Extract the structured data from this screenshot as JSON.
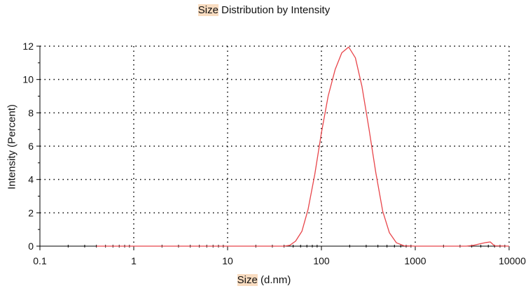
{
  "chart_data": {
    "type": "line",
    "title": {
      "highlight": "Size",
      "rest": " Distribution by Intensity"
    },
    "xlabel": {
      "highlight": "Size",
      "rest": " (d.nm)"
    },
    "ylabel": "Intensity (Percent)",
    "x_scale": "log",
    "xlim": [
      0.1,
      10000
    ],
    "ylim": [
      0,
      12
    ],
    "x_ticks": [
      "0.1",
      "1",
      "10",
      "100",
      "1000",
      "10000"
    ],
    "y_ticks": [
      "0",
      "2",
      "4",
      "6",
      "8",
      "10",
      "12"
    ],
    "grid": true,
    "series": [
      {
        "color": "#e8454a",
        "x": [
          0.4,
          10,
          40,
          46,
          53,
          62,
          72,
          85,
          100,
          118,
          140,
          165,
          195,
          230,
          270,
          320,
          380,
          450,
          530,
          630,
          760,
          1000,
          2000,
          3500,
          4200,
          5000,
          5700,
          6300,
          7000,
          10000
        ],
        "y": [
          0,
          0,
          0,
          0.05,
          0.3,
          0.9,
          2.2,
          4.3,
          6.8,
          9.0,
          10.6,
          11.6,
          11.95,
          11.3,
          9.6,
          7.1,
          4.4,
          2.1,
          0.8,
          0.2,
          0.02,
          0,
          0,
          0,
          0.05,
          0.15,
          0.22,
          0.25,
          0.02,
          0
        ]
      }
    ]
  },
  "colors": {
    "line": "#e8454a",
    "axis": "#000000",
    "grid": "#000000"
  }
}
